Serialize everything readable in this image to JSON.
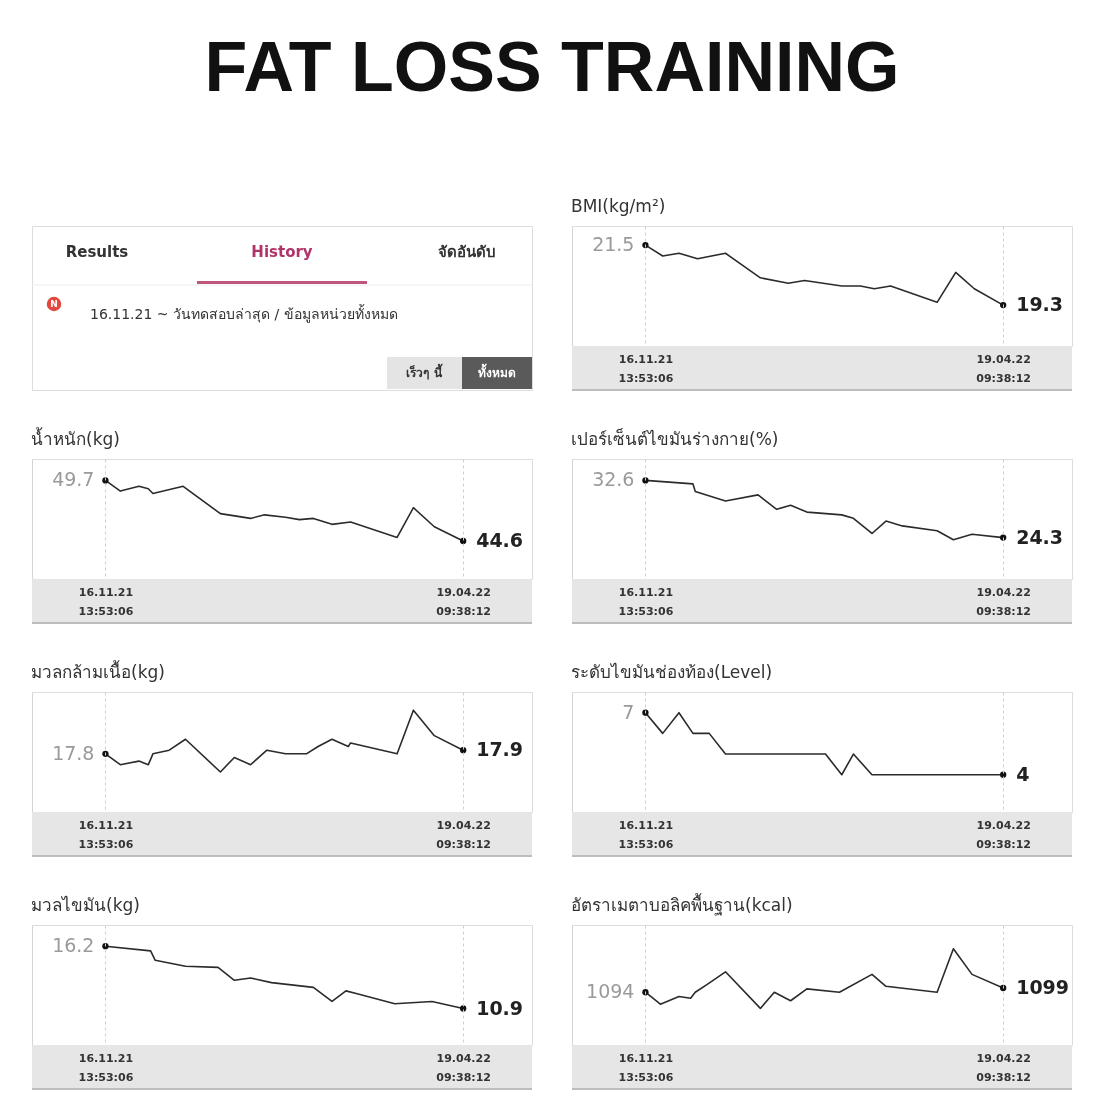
{
  "chart_data": [
    {
      "type": "line",
      "title": "BMI(kg/m²)",
      "color": "#2b2b2b",
      "grid": "x",
      "tick_labels": "x",
      "x": [
        "2021-11-16T13:53",
        "2021-11-24",
        "2021-12-01",
        "2021-12-09",
        "2021-12-21",
        "2022-01-05",
        "2022-01-17",
        "2022-01-24",
        "2022-02-09",
        "2022-02-17",
        "2022-02-23",
        "2022-03-02",
        "2022-03-22",
        "2022-03-30",
        "2022-04-07",
        "2022-04-19T09:38"
      ],
      "values": [
        21.5,
        21.1,
        21.2,
        21.0,
        21.2,
        20.3,
        20.1,
        20.2,
        20.0,
        20.0,
        19.9,
        20.0,
        19.4,
        20.5,
        19.9,
        19.3
      ],
      "value_labels": [
        "21.5",
        null,
        null,
        null,
        null,
        null,
        null,
        null,
        null,
        null,
        null,
        null,
        null,
        null,
        null,
        "19.3"
      ],
      "xlim": [
        "2021-10-16",
        "2022-05-19"
      ],
      "xticks": [
        {
          "value": "2021-11-16T13:53",
          "label": "16.11.21 13:53:06"
        },
        {
          "value": "2022-04-19T09:38",
          "label": "19.04.22 09:38:12"
        }
      ],
      "ylim": [
        17.8,
        22.2
      ]
    },
    {
      "type": "line",
      "title": "น้ำหนัก(kg)",
      "color": "#2b2b2b",
      "grid": "x",
      "tick_labels": "x",
      "x": [
        "2021-11-16T13:53",
        "2021-11-23",
        "2021-12-01",
        "2021-12-05",
        "2021-12-07",
        "2021-12-20",
        "2022-01-05",
        "2022-01-18",
        "2022-01-24",
        "2022-02-02",
        "2022-02-08",
        "2022-02-14",
        "2022-02-22",
        "2022-03-02",
        "2022-03-22",
        "2022-03-29",
        "2022-04-07",
        "2022-04-19T09:38"
      ],
      "values": [
        49.7,
        48.8,
        49.2,
        49.0,
        48.6,
        49.2,
        46.9,
        46.5,
        46.8,
        46.6,
        46.4,
        46.5,
        46.0,
        46.2,
        44.9,
        47.4,
        45.8,
        44.6
      ],
      "value_labels": [
        "49.7",
        null,
        null,
        null,
        null,
        null,
        null,
        null,
        null,
        null,
        null,
        null,
        null,
        null,
        null,
        null,
        null,
        "44.6"
      ],
      "xlim": [
        "2021-10-16",
        "2022-05-19"
      ],
      "xticks": [
        {
          "value": "2021-11-16T13:53",
          "label": "16.11.21 13:53:06"
        },
        {
          "value": "2022-04-19T09:38",
          "label": "19.04.22 09:38:12"
        }
      ],
      "ylim": [
        41.4,
        51.5
      ]
    },
    {
      "type": "line",
      "title": "เปอร์เซ็นต์ไขมันร่างกาย(%)",
      "color": "#2b2b2b",
      "grid": "x",
      "tick_labels": "x",
      "x": [
        "2021-11-16T13:53",
        "2021-12-07",
        "2021-12-08",
        "2021-12-21",
        "2022-01-04",
        "2022-01-12",
        "2022-01-18",
        "2022-01-25",
        "2022-02-09",
        "2022-02-14",
        "2022-02-22",
        "2022-02-28",
        "2022-03-07",
        "2022-03-22",
        "2022-03-29",
        "2022-04-06",
        "2022-04-19T09:38"
      ],
      "values": [
        32.6,
        32.1,
        31.0,
        29.6,
        30.5,
        28.4,
        29.0,
        28.0,
        27.6,
        27.1,
        24.9,
        26.7,
        26.0,
        25.3,
        24.0,
        24.8,
        24.3
      ],
      "value_labels": [
        "32.6",
        null,
        null,
        null,
        null,
        null,
        null,
        null,
        null,
        null,
        null,
        null,
        null,
        null,
        null,
        null,
        "24.3"
      ],
      "xlim": [
        "2021-10-16",
        "2022-05-19"
      ],
      "xticks": [
        {
          "value": "2021-11-16T13:53",
          "label": "16.11.21 13:53:06"
        },
        {
          "value": "2022-04-19T09:38",
          "label": "19.04.22 09:38:12"
        }
      ],
      "ylim": [
        18.3,
        35.7
      ]
    },
    {
      "type": "line",
      "title": "มวลกล้ามเนื้อ(kg)",
      "color": "#2b2b2b",
      "grid": "x",
      "tick_labels": "x",
      "x": [
        "2021-11-16T13:53",
        "2021-11-23",
        "2021-12-01",
        "2021-12-05",
        "2021-12-07",
        "2021-12-14",
        "2021-12-21",
        "2022-01-05",
        "2022-01-11",
        "2022-01-18",
        "2022-01-25",
        "2022-02-02",
        "2022-02-11",
        "2022-02-16",
        "2022-02-22",
        "2022-03-01",
        "2022-03-02",
        "2022-03-22",
        "2022-03-29",
        "2022-04-07",
        "2022-04-19T09:38"
      ],
      "values": [
        17.8,
        17.5,
        17.6,
        17.5,
        17.8,
        17.9,
        18.2,
        17.3,
        17.7,
        17.5,
        17.9,
        17.8,
        17.8,
        18.0,
        18.2,
        18.0,
        18.1,
        17.8,
        19.0,
        18.3,
        17.9
      ],
      "value_labels": [
        "17.8",
        null,
        null,
        null,
        null,
        null,
        null,
        null,
        null,
        null,
        null,
        null,
        null,
        null,
        null,
        null,
        null,
        null,
        null,
        null,
        "17.9"
      ],
      "xlim": [
        "2021-10-16",
        "2022-05-19"
      ],
      "xticks": [
        {
          "value": "2021-11-16T13:53",
          "label": "16.11.21 13:53:06"
        },
        {
          "value": "2022-04-19T09:38",
          "label": "19.04.22 09:38:12"
        }
      ],
      "ylim": [
        16.2,
        19.5
      ]
    },
    {
      "type": "line",
      "title": "ระดับไขมันช่องท้อง(Level)",
      "color": "#2b2b2b",
      "grid": "x",
      "tick_labels": "x",
      "x": [
        "2021-11-16T13:53",
        "2021-11-24",
        "2021-12-01",
        "2021-12-07",
        "2021-12-14",
        "2021-12-21",
        "2022-02-02",
        "2022-02-09",
        "2022-02-14",
        "2022-02-22",
        "2022-04-19T09:38"
      ],
      "values": [
        7,
        6,
        7,
        6,
        6,
        5,
        5,
        4,
        5,
        4,
        4
      ],
      "value_labels": [
        "7",
        null,
        null,
        null,
        null,
        null,
        null,
        null,
        null,
        null,
        "4"
      ],
      "xlim": [
        "2021-10-16",
        "2022-05-19"
      ],
      "xticks": [
        {
          "value": "2021-11-16T13:53",
          "label": "16.11.21 13:53:06"
        },
        {
          "value": "2022-04-19T09:38",
          "label": "19.04.22 09:38:12"
        }
      ],
      "ylim": [
        2.2,
        8.0
      ]
    },
    {
      "type": "line",
      "title": "มวลไขมัน(kg)",
      "color": "#2b2b2b",
      "grid": "x",
      "tick_labels": "x",
      "x": [
        "2021-11-16T13:53",
        "2021-12-06",
        "2021-12-08",
        "2021-12-21",
        "2022-01-04",
        "2022-01-11",
        "2022-01-18",
        "2022-01-27",
        "2022-02-14",
        "2022-02-22",
        "2022-02-28",
        "2022-03-04",
        "2022-03-21",
        "2022-04-06",
        "2022-04-19T09:38"
      ],
      "values": [
        16.2,
        15.8,
        15.0,
        14.5,
        14.4,
        13.3,
        13.5,
        13.1,
        12.7,
        11.5,
        12.4,
        12.2,
        11.3,
        11.5,
        10.9
      ],
      "value_labels": [
        "16.2",
        null,
        null,
        null,
        null,
        null,
        null,
        null,
        null,
        null,
        null,
        null,
        null,
        null,
        "10.9"
      ],
      "xlim": [
        "2021-10-16",
        "2022-05-19"
      ],
      "xticks": [
        {
          "value": "2021-11-16T13:53",
          "label": "16.11.21 13:53:06"
        },
        {
          "value": "2022-04-19T09:38",
          "label": "19.04.22 09:38:12"
        }
      ],
      "ylim": [
        7.8,
        18.0
      ]
    },
    {
      "type": "line",
      "title": "อัตราเมตาบอลิคพื้นฐาน(kcal)",
      "color": "#2b2b2b",
      "grid": "x",
      "tick_labels": "x",
      "x": [
        "2021-11-16T13:53",
        "2021-11-23",
        "2021-12-01",
        "2021-12-06",
        "2021-12-08",
        "2021-12-13",
        "2021-12-21",
        "2022-01-05",
        "2022-01-11",
        "2022-01-18",
        "2022-01-25",
        "2022-02-08",
        "2022-02-22",
        "2022-02-28",
        "2022-03-22",
        "2022-03-29",
        "2022-04-06",
        "2022-04-19T09:38"
      ],
      "values": [
        1094,
        1080,
        1089,
        1087,
        1094,
        1103,
        1118,
        1075,
        1094,
        1084,
        1098,
        1094,
        1115,
        1101,
        1094,
        1145,
        1115,
        1099
      ],
      "value_labels": [
        "1094",
        null,
        null,
        null,
        null,
        null,
        null,
        null,
        null,
        null,
        null,
        null,
        null,
        null,
        null,
        null,
        null,
        "1099"
      ],
      "xlim": [
        "2021-10-16",
        "2022-05-19"
      ],
      "xticks": [
        {
          "value": "2021-11-16T13:53",
          "label": "16.11.21 13:53:06"
        },
        {
          "value": "2022-04-19T09:38",
          "label": "19.04.22 09:38:12"
        }
      ],
      "ylim": [
        1032,
        1173
      ]
    },
    {
      "type": "other",
      "title": "FAT LOSS TRAINING",
      "annotations": [
        "Results",
        "History",
        "จัดอันดับ",
        "N",
        "16.11.21 ~ วันทดสอบล่าสุด / ข้อมูลหน่วยทั้งหมด",
        "เร็วๆ นี้",
        "ทั้งหมด"
      ]
    }
  ]
}
